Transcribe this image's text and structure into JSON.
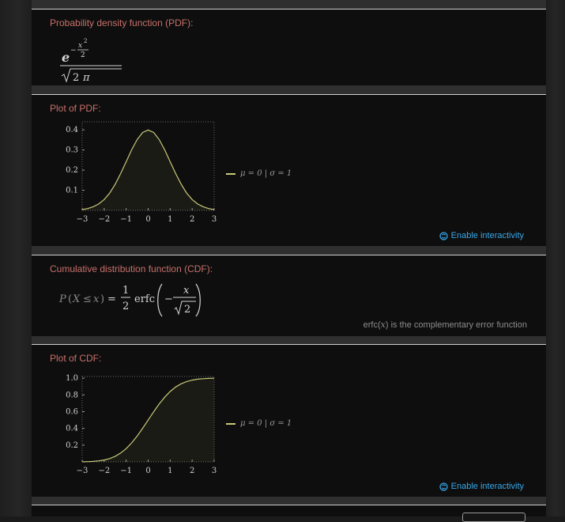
{
  "pods": {
    "pdf_formula": {
      "title": "Probability density function (PDF):"
    },
    "pdf_plot": {
      "title": "Plot of PDF:",
      "legend": "μ = 0  |  σ = 1",
      "enable": "Enable interactivity"
    },
    "cdf_formula": {
      "title": "Cumulative distribution function (CDF):",
      "note_prefix": "erfc(",
      "note_var": "x",
      "note_suffix": ") is the complementary error function"
    },
    "cdf_plot": {
      "title": "Plot of CDF:",
      "legend": "μ = 0  |  σ = 1",
      "enable": "Enable interactivity"
    }
  },
  "colors": {
    "title": "#c7706a",
    "link": "#38a7e8",
    "curve": "#c8c878",
    "panel": "#0e0e0e"
  },
  "icons": {
    "enable": "interactivity-icon"
  },
  "chart_data": [
    {
      "type": "line",
      "title": "Plot of PDF:",
      "x": [
        -3,
        -2.75,
        -2.5,
        -2.25,
        -2,
        -1.75,
        -1.5,
        -1.25,
        -1,
        -0.75,
        -0.5,
        -0.25,
        0,
        0.25,
        0.5,
        0.75,
        1,
        1.25,
        1.5,
        1.75,
        2,
        2.25,
        2.5,
        2.75,
        3
      ],
      "series": [
        {
          "name": "μ = 0  |  σ = 1",
          "values": [
            0.004,
            0.009,
            0.018,
            0.032,
            0.054,
            0.086,
            0.13,
            0.183,
            0.242,
            0.301,
            0.352,
            0.387,
            0.399,
            0.387,
            0.352,
            0.301,
            0.242,
            0.183,
            0.13,
            0.086,
            0.054,
            0.032,
            0.018,
            0.009,
            0.004
          ]
        }
      ],
      "xticks": [
        -3,
        -2,
        -1,
        0,
        1,
        2,
        3
      ],
      "xtick_labels": [
        "−3",
        "−2",
        "−1",
        "0",
        "1",
        "2",
        "3"
      ],
      "yticks": [
        0.1,
        0.2,
        0.3,
        0.4
      ],
      "ytick_labels": [
        "0.1",
        "0.2",
        "0.3",
        "0.4"
      ],
      "xlim": [
        -3,
        3
      ],
      "ylim": [
        0,
        0.44
      ]
    },
    {
      "type": "line",
      "title": "Plot of CDF:",
      "x": [
        -3,
        -2.75,
        -2.5,
        -2.25,
        -2,
        -1.75,
        -1.5,
        -1.25,
        -1,
        -0.75,
        -0.5,
        -0.25,
        0,
        0.25,
        0.5,
        0.75,
        1,
        1.25,
        1.5,
        1.75,
        2,
        2.25,
        2.5,
        2.75,
        3
      ],
      "series": [
        {
          "name": "μ = 0  |  σ = 1",
          "values": [
            0.001,
            0.003,
            0.006,
            0.012,
            0.023,
            0.04,
            0.067,
            0.106,
            0.159,
            0.227,
            0.309,
            0.401,
            0.5,
            0.599,
            0.691,
            0.773,
            0.841,
            0.894,
            0.933,
            0.96,
            0.977,
            0.988,
            0.994,
            0.997,
            0.999
          ]
        }
      ],
      "xticks": [
        -3,
        -2,
        -1,
        0,
        1,
        2,
        3
      ],
      "xtick_labels": [
        "−3",
        "−2",
        "−1",
        "0",
        "1",
        "2",
        "3"
      ],
      "yticks": [
        0.2,
        0.4,
        0.6,
        0.8,
        1.0
      ],
      "ytick_labels": [
        "0.2",
        "0.4",
        "0.6",
        "0.8",
        "1.0"
      ],
      "xlim": [
        -3,
        3
      ],
      "ylim": [
        0,
        1.02
      ]
    }
  ]
}
